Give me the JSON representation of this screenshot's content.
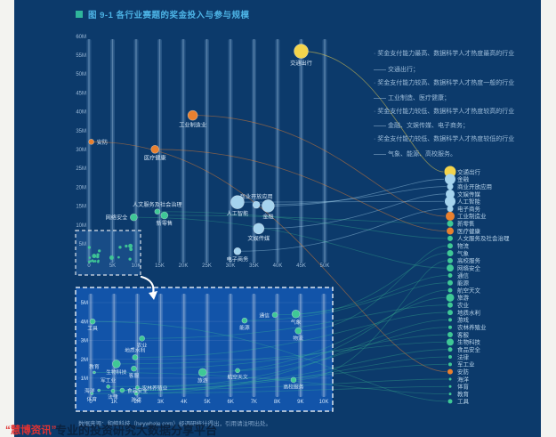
{
  "title": {
    "figure_label": "图 9-1 各行业赛题的奖金投入与参与规模"
  },
  "annotations": [
    {
      "line1": "奖金支付能力最高、数据科学人才热度最高的行业",
      "line2": "—— 交通出行；"
    },
    {
      "line1": "奖金支付能力较高、数据科学人才热度一般的行业",
      "line2": "—— 工业制造、医疗健康；"
    },
    {
      "line1": "奖金支付能力较低、数据科学人才热度较高的行业",
      "line2": "—— 金融、文娱传媒、电子商务；"
    },
    {
      "line1": "奖金支付能力较低、数据科学人才热度较低的行业",
      "line2": "—— 气象、能源、高校服务。"
    }
  ],
  "source_note": "数据来源：和鲸科技（heywhale.com）经调研统计得出，引用请注明出处。",
  "watermark": {
    "brand": "“慧博资讯”",
    "tagline": "专业的投资研究大数据分享平台"
  },
  "colors": {
    "page_bg": "#f3f3f0",
    "panel_bg": "#0c3a6b",
    "inset_bg": "#1254a9",
    "highlight_fill": "rgba(70,140,230,0.22)",
    "title_text": "#4db4e6",
    "title_square": "#2fb59b",
    "axis_text": "#9fbcd9",
    "inset_axis_text": "#cfe4fa",
    "point_label_text": "#d3e4f4",
    "legend_text": "#b9d4ea",
    "yellow": "#f3d44c",
    "orange": "#e8802f",
    "blue": "#a5d3ee",
    "green": "#3fc896",
    "dashed_border": "rgba(255,255,255,0.85)",
    "pillar": "rgba(160,205,250,0.18)",
    "pillar_core": "rgba(205,232,255,0.30)"
  },
  "chart_data": {
    "type": "scatter",
    "title": "图 9-1 各行业赛题的奖金投入与参与规模",
    "subtitle_note": "bubble position = participation (x) vs prize money (y); inset magnifies x 0-10K, y 0-5M",
    "main_axes": {
      "x_ticks": [
        "0",
        "5K",
        "10K",
        "15K",
        "20K",
        "25K",
        "30K",
        "35K",
        "40K",
        "45K",
        "50K"
      ],
      "x_values": [
        0,
        5000,
        10000,
        15000,
        20000,
        25000,
        30000,
        35000,
        40000,
        45000,
        50000
      ],
      "y_ticks": [
        "60M",
        "55M",
        "50M",
        "45M",
        "40M",
        "35M",
        "30M",
        "25M",
        "20M",
        "15M",
        "10M",
        "5M"
      ],
      "y_values": [
        60000000,
        55000000,
        50000000,
        45000000,
        40000000,
        35000000,
        30000000,
        25000000,
        20000000,
        15000000,
        10000000,
        5000000
      ],
      "xlim": [
        0,
        50000
      ],
      "ylim": [
        0,
        60000000
      ],
      "grid": "vertical-pillars",
      "legend_position": "right"
    },
    "inset_axes": {
      "x_ticks": [
        "0",
        "1K",
        "2K",
        "3K",
        "4K",
        "5K",
        "6K",
        "7K",
        "8K",
        "9K",
        "10K"
      ],
      "x_values": [
        0,
        1000,
        2000,
        3000,
        4000,
        5000,
        6000,
        7000,
        8000,
        9000,
        10000
      ],
      "y_ticks": [
        "5M",
        "4M",
        "3M",
        "2M",
        "1M"
      ],
      "y_values": [
        5000000,
        4000000,
        3000000,
        2000000,
        1000000
      ],
      "xlim": [
        0,
        10000
      ],
      "ylim": [
        0,
        5500000
      ]
    },
    "series": [
      {
        "name": "交通出行",
        "participants": 45000,
        "prize": 56000000,
        "color": "yellow",
        "r": 8,
        "zone": "main",
        "lp": "b",
        "lr": 6.5
      },
      {
        "name": "金融",
        "participants": 38000,
        "prize": 15000000,
        "color": "blue",
        "r": 7,
        "zone": "main",
        "lp": "b",
        "lr": 6
      },
      {
        "name": "商业开放应用",
        "participants": 35500,
        "prize": 15300000,
        "color": "blue",
        "r": 4,
        "zone": "main",
        "lp": "a",
        "lr": 3.5
      },
      {
        "name": "文娱传媒",
        "participants": 36000,
        "prize": 9000000,
        "color": "blue",
        "r": 6,
        "zone": "main",
        "lp": "b",
        "lr": 5
      },
      {
        "name": "人工智能",
        "participants": 31500,
        "prize": 16000000,
        "color": "blue",
        "r": 7.5,
        "zone": "main",
        "lp": "b",
        "lr": 6
      },
      {
        "name": "电子商务",
        "participants": 31500,
        "prize": 3000000,
        "color": "blue",
        "r": 4,
        "zone": "main",
        "lp": "b",
        "lr": 3.5
      },
      {
        "name": "工业制造业",
        "participants": 22000,
        "prize": 39000000,
        "color": "orange",
        "r": 5.5,
        "zone": "main",
        "lp": "b",
        "lr": 5
      },
      {
        "name": "新零售",
        "participants": 16000,
        "prize": 12500000,
        "color": "green",
        "r": 4,
        "zone": "main",
        "lp": "b",
        "lr": 3.5
      },
      {
        "name": "医疗健康",
        "participants": 14000,
        "prize": 30000000,
        "color": "orange",
        "r": 4.5,
        "zone": "main",
        "lp": "b",
        "lr": 4
      },
      {
        "name": "人文服务及社会治理",
        "participants": 14500,
        "prize": 13500000,
        "color": "green",
        "r": 3,
        "zone": "main",
        "lp": "a",
        "lr": 3
      },
      {
        "name": "物流",
        "participants": 8900,
        "prize": 3500000,
        "color": "green",
        "r": 3.5,
        "zone": "inset",
        "lp": "b",
        "lr": 3
      },
      {
        "name": "气象",
        "participants": 8800,
        "prize": 4400000,
        "color": "green",
        "r": 4.5,
        "zone": "inset",
        "lp": "b",
        "lr": 3.5
      },
      {
        "name": "高校服务",
        "participants": 8700,
        "prize": 900000,
        "color": "green",
        "r": 3,
        "zone": "inset",
        "lp": "b",
        "lr": 3
      },
      {
        "name": "网络安全",
        "participants": 9500,
        "prize": 12000000,
        "color": "green",
        "r": 4,
        "zone": "main",
        "lp": "l",
        "lr": 4
      },
      {
        "name": "通信",
        "participants": 7900,
        "prize": 4350000,
        "color": "green",
        "r": 3,
        "zone": "inset",
        "lp": "l",
        "lr": 2.5
      },
      {
        "name": "能源",
        "participants": 6600,
        "prize": 4050000,
        "color": "green",
        "r": 3,
        "zone": "inset",
        "lp": "b",
        "lr": 3
      },
      {
        "name": "航空天文",
        "participants": 6300,
        "prize": 1400000,
        "color": "green",
        "r": 2.5,
        "zone": "inset",
        "lp": "b",
        "lr": 2.5
      },
      {
        "name": "旅游",
        "participants": 4800,
        "prize": 1300000,
        "color": "green",
        "r": 4.5,
        "zone": "inset",
        "lp": "b",
        "lr": 4.5
      },
      {
        "name": "农业",
        "participants": 2200,
        "prize": 3100000,
        "color": "green",
        "r": 3,
        "zone": "inset",
        "lp": "b",
        "lr": 3
      },
      {
        "name": "地质水利",
        "participants": 1900,
        "prize": 2100000,
        "color": "green",
        "r": 3,
        "zone": "inset",
        "lp": "a",
        "lr": 3
      },
      {
        "name": "游戏",
        "participants": 1950,
        "prize": 180000,
        "color": "green",
        "r": 2,
        "zone": "inset",
        "lp": "b",
        "lr": 2
      },
      {
        "name": "农林养殖业",
        "participants": 2000,
        "prize": 500000,
        "color": "green",
        "r": 2,
        "zone": "inset",
        "lp": "r",
        "lr": 2
      },
      {
        "name": "客服",
        "participants": 1850,
        "prize": 1500000,
        "color": "green",
        "r": 3,
        "zone": "inset",
        "lp": "b",
        "lr": 3
      },
      {
        "name": "生物科技",
        "participants": 1100,
        "prize": 1750000,
        "color": "green",
        "r": 4.5,
        "zone": "inset",
        "lp": "b",
        "lr": 4
      },
      {
        "name": "食品安全",
        "participants": 1350,
        "prize": 350000,
        "color": "green",
        "r": 2.5,
        "zone": "inset",
        "lp": "r",
        "lr": 2.5
      },
      {
        "name": "法律",
        "participants": 950,
        "prize": 320000,
        "color": "green",
        "r": 2,
        "zone": "inset",
        "lp": "b",
        "lr": 2
      },
      {
        "name": "军工业",
        "participants": 750,
        "prize": 550000,
        "color": "green",
        "r": 2,
        "zone": "inset",
        "lp": "a",
        "lr": 2
      },
      {
        "name": "安防",
        "participants": 500,
        "prize": 32000000,
        "color": "orange",
        "r": 3,
        "zone": "main",
        "lp": "r",
        "lr": 3
      },
      {
        "name": "海洋",
        "participants": 350,
        "prize": 350000,
        "color": "green",
        "r": 1.5,
        "zone": "inset",
        "lp": "l",
        "lr": 1.5
      },
      {
        "name": "体育",
        "participants": 50,
        "prize": 180000,
        "color": "green",
        "r": 1.5,
        "zone": "inset",
        "lp": "b",
        "lr": 1.5
      },
      {
        "name": "教育",
        "participants": 150,
        "prize": 1300000,
        "color": "green",
        "r": 1.5,
        "zone": "inset",
        "lp": "a",
        "lr": 1.5
      },
      {
        "name": "工具",
        "participants": 80,
        "prize": 4000000,
        "color": "green",
        "r": 3,
        "zone": "inset",
        "lp": "b",
        "lr": 2.5
      }
    ]
  }
}
